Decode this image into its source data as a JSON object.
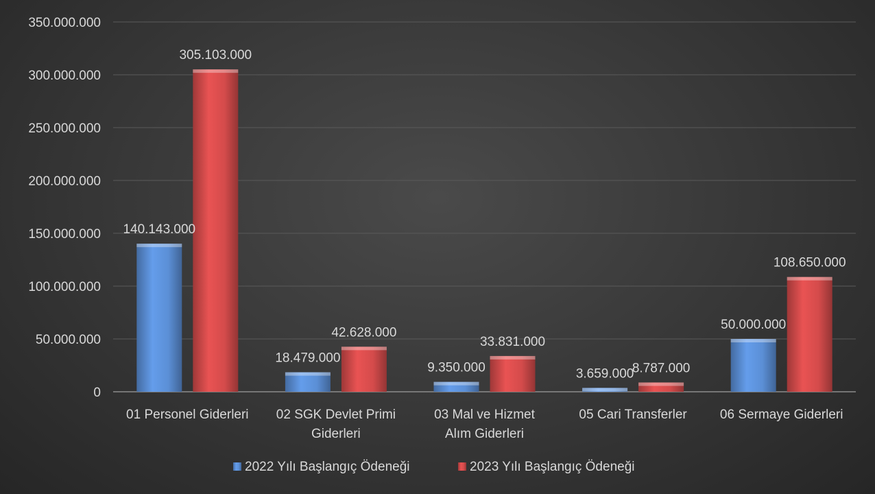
{
  "chart_data": {
    "type": "bar",
    "categories": [
      [
        "01 Personel Giderleri"
      ],
      [
        "02 SGK Devlet Primi",
        "Giderleri"
      ],
      [
        "03 Mal ve Hizmet",
        "Alım Giderleri"
      ],
      [
        "05 Cari Transferler"
      ],
      [
        "06 Sermaye Giderleri"
      ]
    ],
    "series": [
      {
        "name": "2022 Yılı Başlangıç Ödeneği",
        "color": "#5b8fd6",
        "values": [
          140143000,
          18479000,
          9350000,
          3659000,
          50000000
        ],
        "labels": [
          "140.143.000",
          "18.479.000",
          "9.350.000",
          "3.659.000",
          "50.000.000"
        ]
      },
      {
        "name": "2023 Yılı Başlangıç Ödeneği",
        "color": "#d44b4b",
        "values": [
          305103000,
          42628000,
          33831000,
          8787000,
          108650000
        ],
        "labels": [
          "305.103.000",
          "42.628.000",
          "33.831.000",
          "8.787.000",
          "108.650.000"
        ]
      }
    ],
    "yticks": [
      {
        "value": 0,
        "label": "0"
      },
      {
        "value": 50000000,
        "label": "50.000.000"
      },
      {
        "value": 100000000,
        "label": "100.000.000"
      },
      {
        "value": 150000000,
        "label": "150.000.000"
      },
      {
        "value": 200000000,
        "label": "200.000.000"
      },
      {
        "value": 250000000,
        "label": "250.000.000"
      },
      {
        "value": 300000000,
        "label": "300.000.000"
      },
      {
        "value": 350000000,
        "label": "350.000.000"
      }
    ],
    "ylim": [
      0,
      350000000
    ],
    "grid": true,
    "legend_position": "bottom",
    "title": "",
    "xlabel": "",
    "ylabel": ""
  }
}
